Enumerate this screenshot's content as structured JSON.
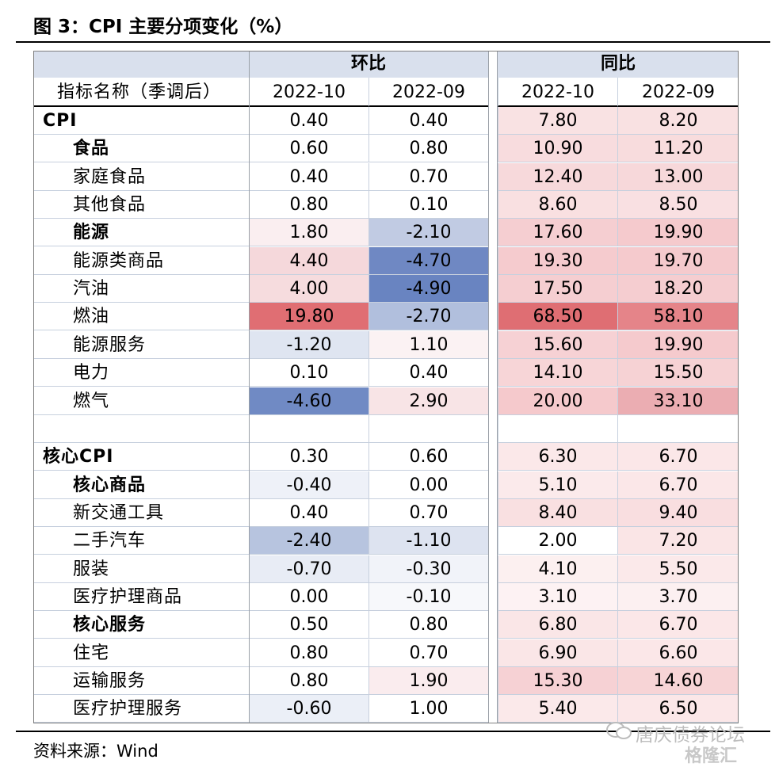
{
  "title": "图 3：CPI 主要分项变化（%）",
  "source": "资料来源：Wind",
  "watermark": {
    "text": "唐庆债券论坛",
    "logo": "格隆汇"
  },
  "table": {
    "group_headers": [
      "环比",
      "同比"
    ],
    "label_header": "指标名称（季调后）",
    "sub_headers": [
      "2022-10",
      "2022-09",
      "2022-10",
      "2022-09"
    ],
    "rows": [
      {
        "label": "CPI",
        "bold": true,
        "indent": false,
        "values": [
          "0.40",
          "0.40",
          "7.80",
          "8.20"
        ],
        "colors": [
          "#ffffff",
          "#ffffff",
          "#f9e2e3",
          "#f9e1e2"
        ]
      },
      {
        "label": "食品",
        "bold": true,
        "indent": true,
        "values": [
          "0.60",
          "0.80",
          "10.90",
          "11.20"
        ],
        "colors": [
          "#ffffff",
          "#ffffff",
          "#f8dcde",
          "#f8dcdd"
        ]
      },
      {
        "label": "家庭食品",
        "bold": false,
        "indent": true,
        "values": [
          "0.40",
          "0.70",
          "12.40",
          "13.00"
        ],
        "colors": [
          "#ffffff",
          "#ffffff",
          "#f7d9db",
          "#f7d8da"
        ]
      },
      {
        "label": "其他食品",
        "bold": false,
        "indent": true,
        "values": [
          "0.80",
          "0.10",
          "8.60",
          "8.50"
        ],
        "colors": [
          "#ffffff",
          "#ffffff",
          "#f9e0e1",
          "#f9e0e2"
        ]
      },
      {
        "label": "能源",
        "bold": true,
        "indent": true,
        "values": [
          "1.80",
          "-2.10",
          "17.60",
          "19.90"
        ],
        "colors": [
          "#faeef0",
          "#c1cbe3",
          "#f5ced1",
          "#f5cacd"
        ]
      },
      {
        "label": "能源类商品",
        "bold": false,
        "indent": true,
        "values": [
          "4.40",
          "-4.70",
          "19.30",
          "19.70"
        ],
        "colors": [
          "#f5d8db",
          "#6f88c3",
          "#f5cbce",
          "#f5cacd"
        ]
      },
      {
        "label": "汽油",
        "bold": false,
        "indent": true,
        "values": [
          "4.00",
          "-4.90",
          "17.50",
          "18.20"
        ],
        "colors": [
          "#f6dcde",
          "#6984c1",
          "#f5ced1",
          "#f5cdd0"
        ]
      },
      {
        "label": "燃油",
        "bold": false,
        "indent": true,
        "values": [
          "19.80",
          "-2.70",
          "68.50",
          "58.10"
        ],
        "colors": [
          "#e06e73",
          "#b1bfdd",
          "#df6e73",
          "#e58489"
        ]
      },
      {
        "label": "能源服务",
        "bold": false,
        "indent": true,
        "values": [
          "-1.20",
          "1.10",
          "15.60",
          "19.90"
        ],
        "colors": [
          "#dfe5f1",
          "#fbf2f3",
          "#f6d1d4",
          "#f5cacd"
        ]
      },
      {
        "label": "电力",
        "bold": false,
        "indent": true,
        "values": [
          "0.10",
          "0.40",
          "14.10",
          "15.50"
        ],
        "colors": [
          "#ffffff",
          "#ffffff",
          "#f7d5d7",
          "#f6d2d4"
        ]
      },
      {
        "label": "燃气",
        "bold": false,
        "indent": true,
        "values": [
          "-4.60",
          "2.90",
          "20.00",
          "33.10"
        ],
        "colors": [
          "#708ac4",
          "#f8e4e6",
          "#f5c9cc",
          "#ebadb2"
        ]
      },
      {
        "label": "",
        "bold": false,
        "indent": false,
        "values": [
          "",
          "",
          "",
          ""
        ],
        "colors": [
          "#ffffff",
          "#ffffff",
          "#ffffff",
          "#ffffff"
        ]
      },
      {
        "label": "核心CPI",
        "bold": true,
        "indent": false,
        "values": [
          "0.30",
          "0.60",
          "6.30",
          "6.70"
        ],
        "colors": [
          "#ffffff",
          "#ffffff",
          "#fbe8e9",
          "#fbe7e8"
        ]
      },
      {
        "label": "核心商品",
        "bold": true,
        "indent": true,
        "values": [
          "-0.40",
          "0.00",
          "5.10",
          "6.70"
        ],
        "colors": [
          "#eef1f8",
          "#ffffff",
          "#fbeaeb",
          "#fbe7e8"
        ]
      },
      {
        "label": "新交通工具",
        "bold": false,
        "indent": true,
        "values": [
          "0.40",
          "0.70",
          "8.40",
          "9.40"
        ],
        "colors": [
          "#ffffff",
          "#ffffff",
          "#f9e0e1",
          "#f9dee0"
        ]
      },
      {
        "label": "二手汽车",
        "bold": false,
        "indent": true,
        "values": [
          "-2.40",
          "-1.10",
          "2.00",
          "7.20"
        ],
        "colors": [
          "#b7c4df",
          "#dde3f0",
          "#ffffff",
          "#fae5e6"
        ]
      },
      {
        "label": "服装",
        "bold": false,
        "indent": true,
        "values": [
          "-0.70",
          "-0.30",
          "4.10",
          "5.50"
        ],
        "colors": [
          "#e8ecf5",
          "#f1f3f9",
          "#fcf0f0",
          "#fbe9ea"
        ]
      },
      {
        "label": "医疗护理商品",
        "bold": false,
        "indent": true,
        "values": [
          "0.00",
          "-0.10",
          "3.10",
          "3.70"
        ],
        "colors": [
          "#ffffff",
          "#f7f8fb",
          "#fdf2f3",
          "#fcf0f1"
        ]
      },
      {
        "label": "核心服务",
        "bold": true,
        "indent": true,
        "values": [
          "0.50",
          "0.80",
          "6.80",
          "6.70"
        ],
        "colors": [
          "#ffffff",
          "#ffffff",
          "#fae6e7",
          "#fbe7e8"
        ]
      },
      {
        "label": "住宅",
        "bold": false,
        "indent": true,
        "values": [
          "0.80",
          "0.70",
          "6.90",
          "6.60"
        ],
        "colors": [
          "#ffffff",
          "#ffffff",
          "#fae6e7",
          "#fbe7e8"
        ]
      },
      {
        "label": "运输服务",
        "bold": false,
        "indent": true,
        "values": [
          "0.80",
          "1.90",
          "15.30",
          "14.60"
        ],
        "colors": [
          "#ffffff",
          "#faecee",
          "#f6d1d4",
          "#f7d4d6"
        ]
      },
      {
        "label": "医疗护理服务",
        "bold": false,
        "indent": true,
        "values": [
          "-0.60",
          "1.00",
          "5.40",
          "6.50"
        ],
        "colors": [
          "#ebeff7",
          "#ffffff",
          "#fbe9ea",
          "#fbe7e8"
        ]
      }
    ]
  }
}
